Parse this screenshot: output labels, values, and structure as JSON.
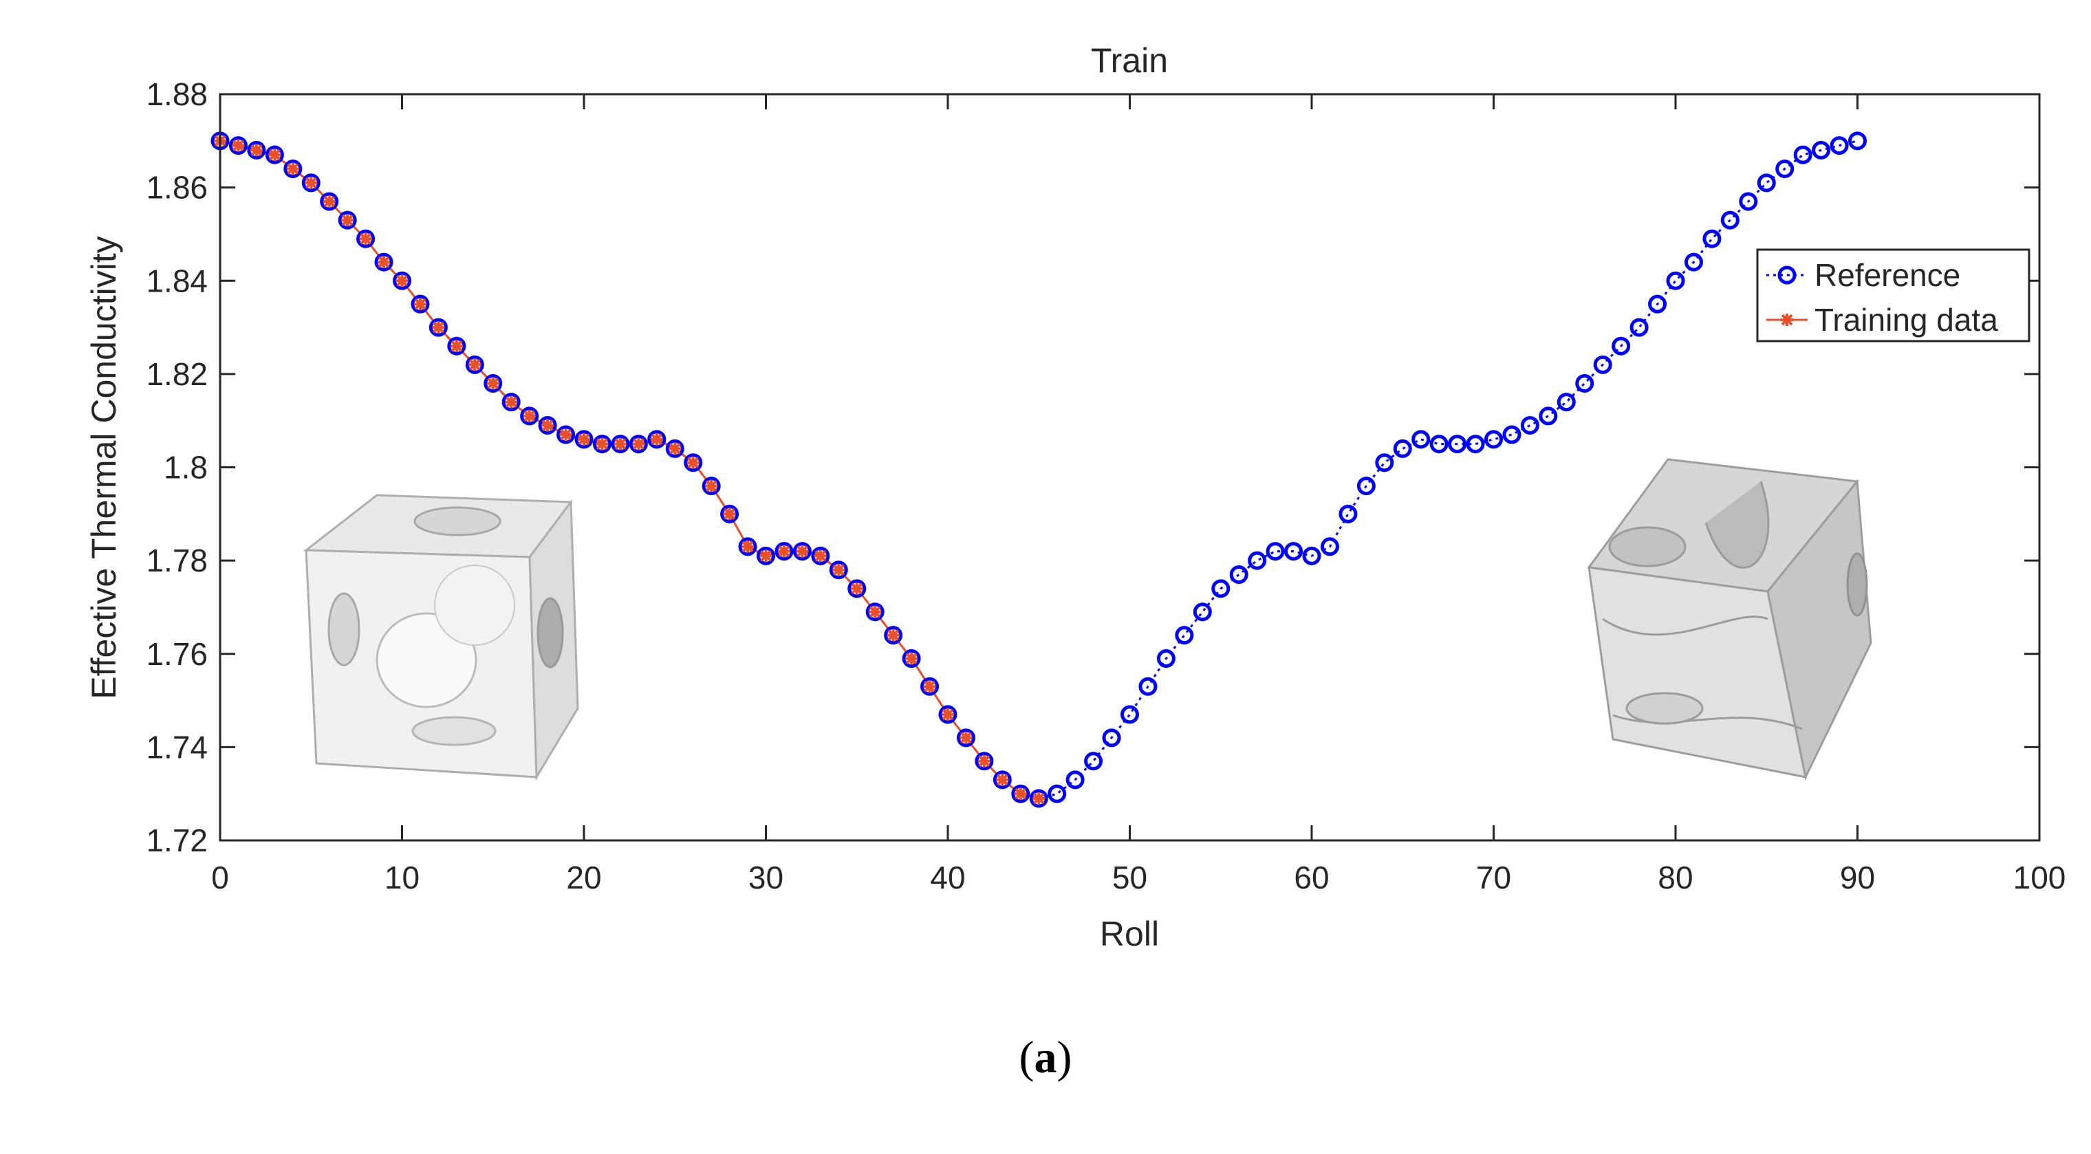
{
  "chart_data": {
    "type": "line",
    "title": "Train",
    "xlabel": "Roll",
    "ylabel": "Effective Thermal Conductivity",
    "xlim": [
      0,
      100
    ],
    "ylim": [
      1.72,
      1.88
    ],
    "xticks": [
      0,
      10,
      20,
      30,
      40,
      50,
      60,
      70,
      80,
      90,
      100
    ],
    "yticks": [
      1.72,
      1.74,
      1.76,
      1.78,
      1.8,
      1.82,
      1.84,
      1.86,
      1.88
    ],
    "ytick_labels": [
      "1.72",
      "1.74",
      "1.76",
      "1.78",
      "1.8",
      "1.82",
      "1.84",
      "1.86",
      "1.88"
    ],
    "grid": false,
    "legend_position": "top-right",
    "series": [
      {
        "name": "Reference",
        "color": "#0000ff",
        "marker": "circle",
        "line": "dotted",
        "x": [
          0,
          1,
          2,
          3,
          4,
          5,
          6,
          7,
          8,
          9,
          10,
          11,
          12,
          13,
          14,
          15,
          16,
          17,
          18,
          19,
          20,
          21,
          22,
          23,
          24,
          25,
          26,
          27,
          28,
          29,
          30,
          31,
          32,
          33,
          34,
          35,
          36,
          37,
          38,
          39,
          40,
          41,
          42,
          43,
          44,
          45,
          46,
          47,
          48,
          49,
          50,
          51,
          52,
          53,
          54,
          55,
          56,
          57,
          58,
          59,
          60,
          61,
          62,
          63,
          64,
          65,
          66,
          67,
          68,
          69,
          70,
          71,
          72,
          73,
          74,
          75,
          76,
          77,
          78,
          79,
          80,
          81,
          82,
          83,
          84,
          85,
          86,
          87,
          88,
          89,
          90
        ],
        "y": [
          1.87,
          1.869,
          1.868,
          1.867,
          1.864,
          1.861,
          1.857,
          1.853,
          1.849,
          1.844,
          1.84,
          1.835,
          1.83,
          1.826,
          1.822,
          1.818,
          1.814,
          1.811,
          1.809,
          1.807,
          1.806,
          1.805,
          1.805,
          1.805,
          1.806,
          1.804,
          1.801,
          1.796,
          1.79,
          1.783,
          1.781,
          1.782,
          1.782,
          1.781,
          1.778,
          1.774,
          1.769,
          1.764,
          1.759,
          1.753,
          1.747,
          1.742,
          1.737,
          1.733,
          1.73,
          1.729,
          1.73,
          1.733,
          1.737,
          1.742,
          1.747,
          1.753,
          1.759,
          1.764,
          1.769,
          1.774,
          1.777,
          1.78,
          1.782,
          1.782,
          1.781,
          1.783,
          1.79,
          1.796,
          1.801,
          1.804,
          1.806,
          1.805,
          1.805,
          1.805,
          1.806,
          1.807,
          1.809,
          1.811,
          1.814,
          1.818,
          1.822,
          1.826,
          1.83,
          1.835,
          1.84,
          1.844,
          1.849,
          1.853,
          1.857,
          1.861,
          1.864,
          1.867,
          1.868,
          1.869,
          1.87
        ]
      },
      {
        "name": "Training data",
        "color": "#e8502a",
        "marker": "star",
        "line": "solid",
        "x": [
          0,
          1,
          2,
          3,
          4,
          5,
          6,
          7,
          8,
          9,
          10,
          11,
          12,
          13,
          14,
          15,
          16,
          17,
          18,
          19,
          20,
          21,
          22,
          23,
          24,
          25,
          26,
          27,
          28,
          29,
          30,
          31,
          32,
          33,
          34,
          35,
          36,
          37,
          38,
          39,
          40,
          41,
          42,
          43,
          44,
          45
        ],
        "y": [
          1.87,
          1.869,
          1.868,
          1.867,
          1.864,
          1.861,
          1.857,
          1.853,
          1.849,
          1.844,
          1.84,
          1.835,
          1.83,
          1.826,
          1.822,
          1.818,
          1.814,
          1.811,
          1.809,
          1.807,
          1.806,
          1.805,
          1.805,
          1.805,
          1.806,
          1.804,
          1.801,
          1.796,
          1.79,
          1.783,
          1.781,
          1.782,
          1.782,
          1.781,
          1.778,
          1.774,
          1.769,
          1.764,
          1.759,
          1.753,
          1.747,
          1.742,
          1.737,
          1.733,
          1.73,
          1.729
        ]
      }
    ]
  },
  "caption": {
    "open": "(",
    "letter": "a",
    "close": ")"
  },
  "insets": [
    {
      "name": "cube-inset-left"
    },
    {
      "name": "cube-inset-right"
    }
  ]
}
